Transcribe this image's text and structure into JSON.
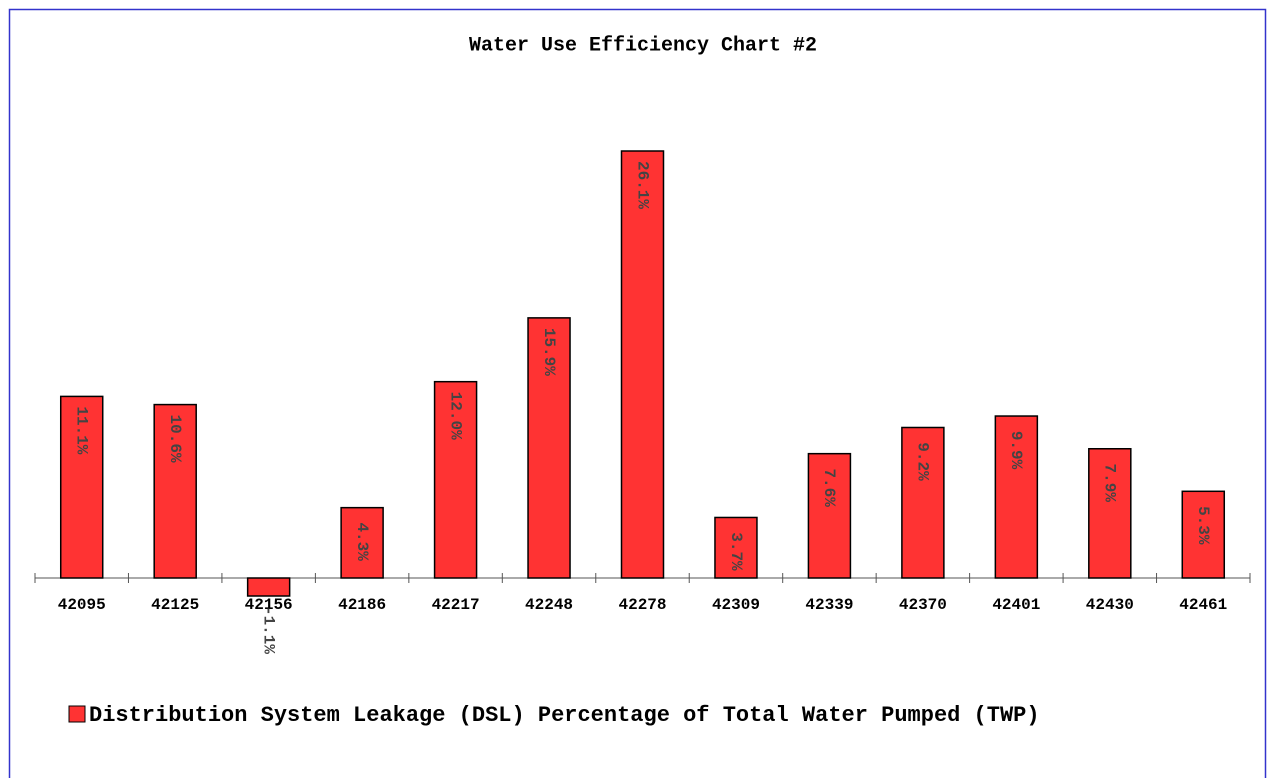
{
  "chart_data": {
    "type": "bar",
    "title": "Water Use Efficiency Chart #2",
    "categories": [
      "42095",
      "42125",
      "42156",
      "42186",
      "42217",
      "42248",
      "42278",
      "42309",
      "42339",
      "42370",
      "42401",
      "42430",
      "42461"
    ],
    "series": [
      {
        "name": "Distribution System Leakage (DSL) Percentage of Total Water Pumped (TWP)",
        "color": "#ff3333",
        "values": [
          11.1,
          10.6,
          -1.1,
          4.3,
          12.0,
          15.9,
          26.1,
          3.7,
          7.6,
          9.2,
          9.9,
          7.9,
          5.3
        ],
        "value_labels": [
          "11.1%",
          "10.6%",
          "-1.1%",
          "4.3%",
          "12.0%",
          "15.9%",
          "26.1%",
          "3.7%",
          "7.6%",
          "9.2%",
          "9.9%",
          "7.9%",
          "5.3%"
        ]
      }
    ],
    "legend": "bottom"
  }
}
